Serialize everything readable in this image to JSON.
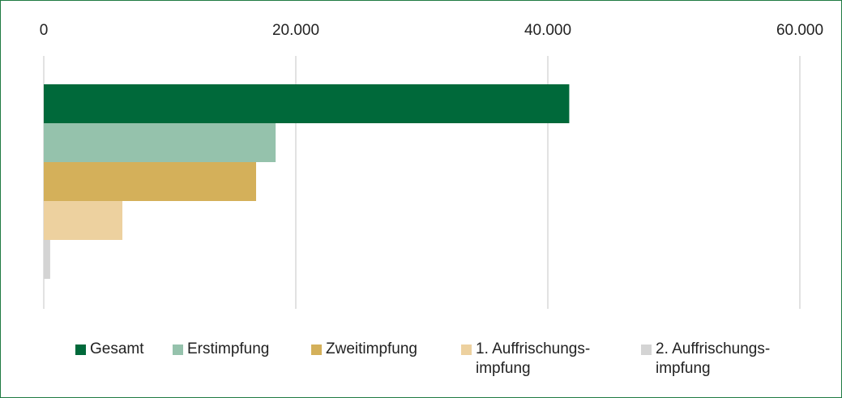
{
  "chart_data": {
    "type": "bar",
    "orientation": "horizontal",
    "categories": [
      null
    ],
    "series": [
      {
        "name": "Gesamt",
        "color": "#00693a",
        "values": [
          41700
        ]
      },
      {
        "name": "Erstimpfung",
        "color": "#95c2ac",
        "values": [
          18400
        ]
      },
      {
        "name": "Zweitimpfung",
        "color": "#d4b05a",
        "values": [
          16850
        ]
      },
      {
        "name": "1. Auffrischungs-\nimpfung",
        "color": "#edd19f",
        "values": [
          6240
        ]
      },
      {
        "name": "2. Auffrischungs-\nimpfung",
        "color": "#d4d4d4",
        "values": [
          510
        ]
      }
    ],
    "xlim": [
      0,
      60000
    ],
    "xticks": [
      0,
      {
        "value": 20000,
        "label": "20.000"
      },
      {
        "value": 40000,
        "label": "40.000"
      },
      {
        "value": 60000,
        "label": "60.000"
      }
    ],
    "grid": true,
    "legend": "bottom"
  }
}
